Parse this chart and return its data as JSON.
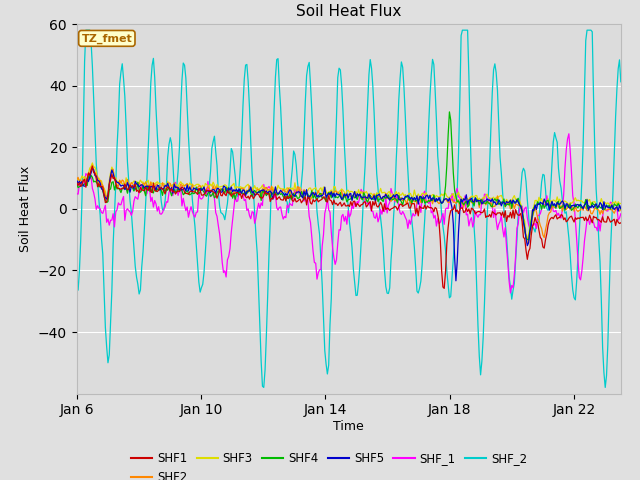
{
  "title": "Soil Heat Flux",
  "xlabel": "Time",
  "ylabel": "Soil Heat Flux",
  "ylim": [
    -60,
    60
  ],
  "yticks": [
    -40,
    -20,
    0,
    20,
    40,
    60
  ],
  "xtick_days": [
    6,
    10,
    14,
    18,
    22
  ],
  "xtick_labels": [
    "Jan 6",
    "Jan 10",
    "Jan 14",
    "Jan 18",
    "Jan 22"
  ],
  "xlim": [
    6,
    23.5
  ],
  "fig_bg": "#e0e0e0",
  "plot_bg": "#dcdcdc",
  "grid_color": "#ffffff",
  "series_colors": {
    "SHF1": "#cc0000",
    "SHF2": "#ff8800",
    "SHF3": "#dddd00",
    "SHF4": "#00bb00",
    "SHF5": "#0000cc",
    "SHF_1": "#ff00ff",
    "SHF_2": "#00cccc"
  },
  "annotation_label": "TZ_fmet",
  "annotation_color": "#aa6600",
  "annotation_bg": "#ffffcc",
  "annotation_border": "#aa6600",
  "lw": 0.9
}
